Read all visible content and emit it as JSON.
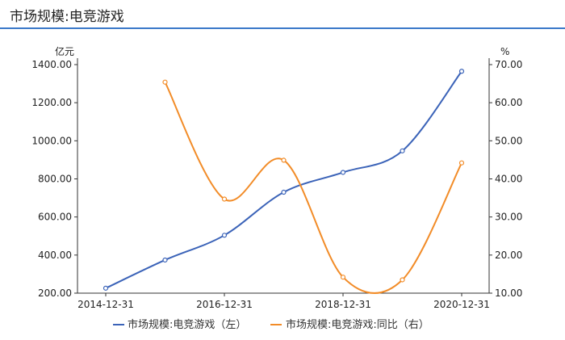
{
  "page": {
    "title": "市场规模:电竞游戏"
  },
  "colors": {
    "accent": "#3a78c9",
    "series_left": "#3b63b8",
    "series_right": "#f28c28"
  },
  "chart_data": {
    "type": "line",
    "x": [
      "2014-12-31",
      "2015-12-31",
      "2016-12-31",
      "2017-12-31",
      "2018-12-31",
      "2019-12-31",
      "2020-12-31"
    ],
    "x_tick_labels": [
      "2014-12-31",
      "2016-12-31",
      "2018-12-31",
      "2020-12-31"
    ],
    "y_left": {
      "unit": "亿元",
      "range": [
        200,
        1400
      ],
      "ticks": [
        "200.00",
        "400.00",
        "600.00",
        "800.00",
        "1000.00",
        "1200.00",
        "1400.00"
      ]
    },
    "y_right": {
      "unit": "%",
      "range": [
        10,
        70
      ],
      "ticks": [
        "10.00",
        "20.00",
        "30.00",
        "40.00",
        "50.00",
        "60.00",
        "70.00"
      ]
    },
    "series": [
      {
        "name": "市场规模:电竞游戏（左）",
        "axis": "left",
        "color": "#3b63b8",
        "values": [
          226,
          374,
          504,
          730,
          834,
          947,
          1365
        ]
      },
      {
        "name": "市场规模:电竞游戏:同比（右）",
        "axis": "right",
        "color": "#f28c28",
        "values": [
          null,
          65.4,
          34.7,
          44.9,
          14.2,
          13.5,
          44.2
        ]
      }
    ],
    "grid": false,
    "legend": "bottom-center"
  }
}
